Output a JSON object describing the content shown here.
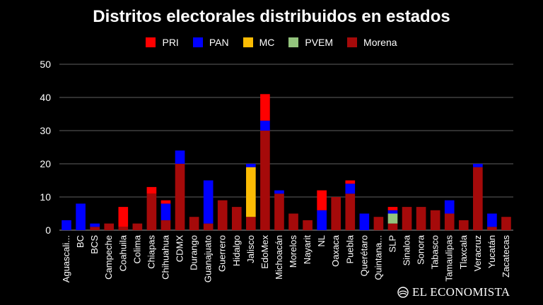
{
  "chart_data": {
    "type": "bar",
    "stacked": true,
    "title": "Distritos electorales distribuidos en estados",
    "xlabel": "",
    "ylabel": "",
    "ylim": [
      0,
      50
    ],
    "yticks": [
      0,
      10,
      20,
      30,
      40,
      50
    ],
    "grid": true,
    "legend_position": "top",
    "categories": [
      "Aguascali...",
      "BC",
      "BCS",
      "Campeche",
      "Coahuila",
      "Colima",
      "Chiapas",
      "Chihuahua",
      "CDMX",
      "Durango",
      "Guanajuato",
      "Guerrero",
      "Hidalgo",
      "Jalisco",
      "EdoMex",
      "Michoacán",
      "Morelos",
      "Nayarit",
      "NL",
      "Oaxaca",
      "Puebla",
      "Querétaro",
      "Quintana...",
      "SLP",
      "Sinaloa",
      "Sonora",
      "Tabasco",
      "Tamaulipas",
      "Tlaxcala",
      "Veracruz",
      "Yucatán",
      "Zacatecas"
    ],
    "series": [
      {
        "name": "Morena",
        "color": "#a50a0a",
        "values": [
          0,
          0,
          1,
          2,
          1,
          2,
          11,
          3,
          20,
          4,
          2,
          9,
          7,
          4,
          30,
          11,
          5,
          3,
          0,
          10,
          11,
          0,
          4,
          2,
          7,
          7,
          6,
          5,
          3,
          19,
          1,
          4
        ]
      },
      {
        "name": "PVEM",
        "color": "#93c47d",
        "values": [
          0,
          0,
          0,
          0,
          0,
          0,
          0,
          0,
          0,
          0,
          0,
          0,
          0,
          0,
          0,
          0,
          0,
          0,
          0,
          0,
          0,
          0,
          0,
          3,
          0,
          0,
          0,
          0,
          0,
          0,
          0,
          0
        ]
      },
      {
        "name": "MC",
        "color": "#fbbc04",
        "values": [
          0,
          0,
          0,
          0,
          0,
          0,
          0,
          0,
          0,
          0,
          0,
          0,
          0,
          15,
          0,
          0,
          0,
          0,
          0,
          0,
          0,
          0,
          0,
          0,
          0,
          0,
          0,
          0,
          0,
          0,
          0,
          0
        ]
      },
      {
        "name": "PAN",
        "color": "#0000ff",
        "values": [
          3,
          8,
          1,
          0,
          0,
          0,
          0,
          5,
          4,
          0,
          13,
          0,
          0,
          1,
          3,
          1,
          0,
          0,
          6,
          0,
          3,
          5,
          0,
          1,
          0,
          0,
          0,
          4,
          0,
          1,
          4,
          0
        ]
      },
      {
        "name": "PRI",
        "color": "#ff0000",
        "values": [
          0,
          0,
          0,
          0,
          6,
          0,
          2,
          1,
          0,
          0,
          0,
          0,
          0,
          0,
          8,
          0,
          0,
          0,
          6,
          0,
          1,
          0,
          0,
          1,
          0,
          0,
          0,
          0,
          0,
          0,
          0,
          0
        ]
      }
    ]
  },
  "legend": {
    "items": [
      {
        "label": "PRI",
        "color": "#ff0000"
      },
      {
        "label": "PAN",
        "color": "#0000ff"
      },
      {
        "label": "MC",
        "color": "#fbbc04"
      },
      {
        "label": "PVEM",
        "color": "#93c47d"
      },
      {
        "label": "Morena",
        "color": "#a50a0a"
      }
    ]
  },
  "brand": {
    "name": "EL ECONOMISTA",
    "icon": "globe-icon"
  },
  "colors": {
    "background": "#000000",
    "text": "#ffffff",
    "grid": "#5f5f5f"
  }
}
